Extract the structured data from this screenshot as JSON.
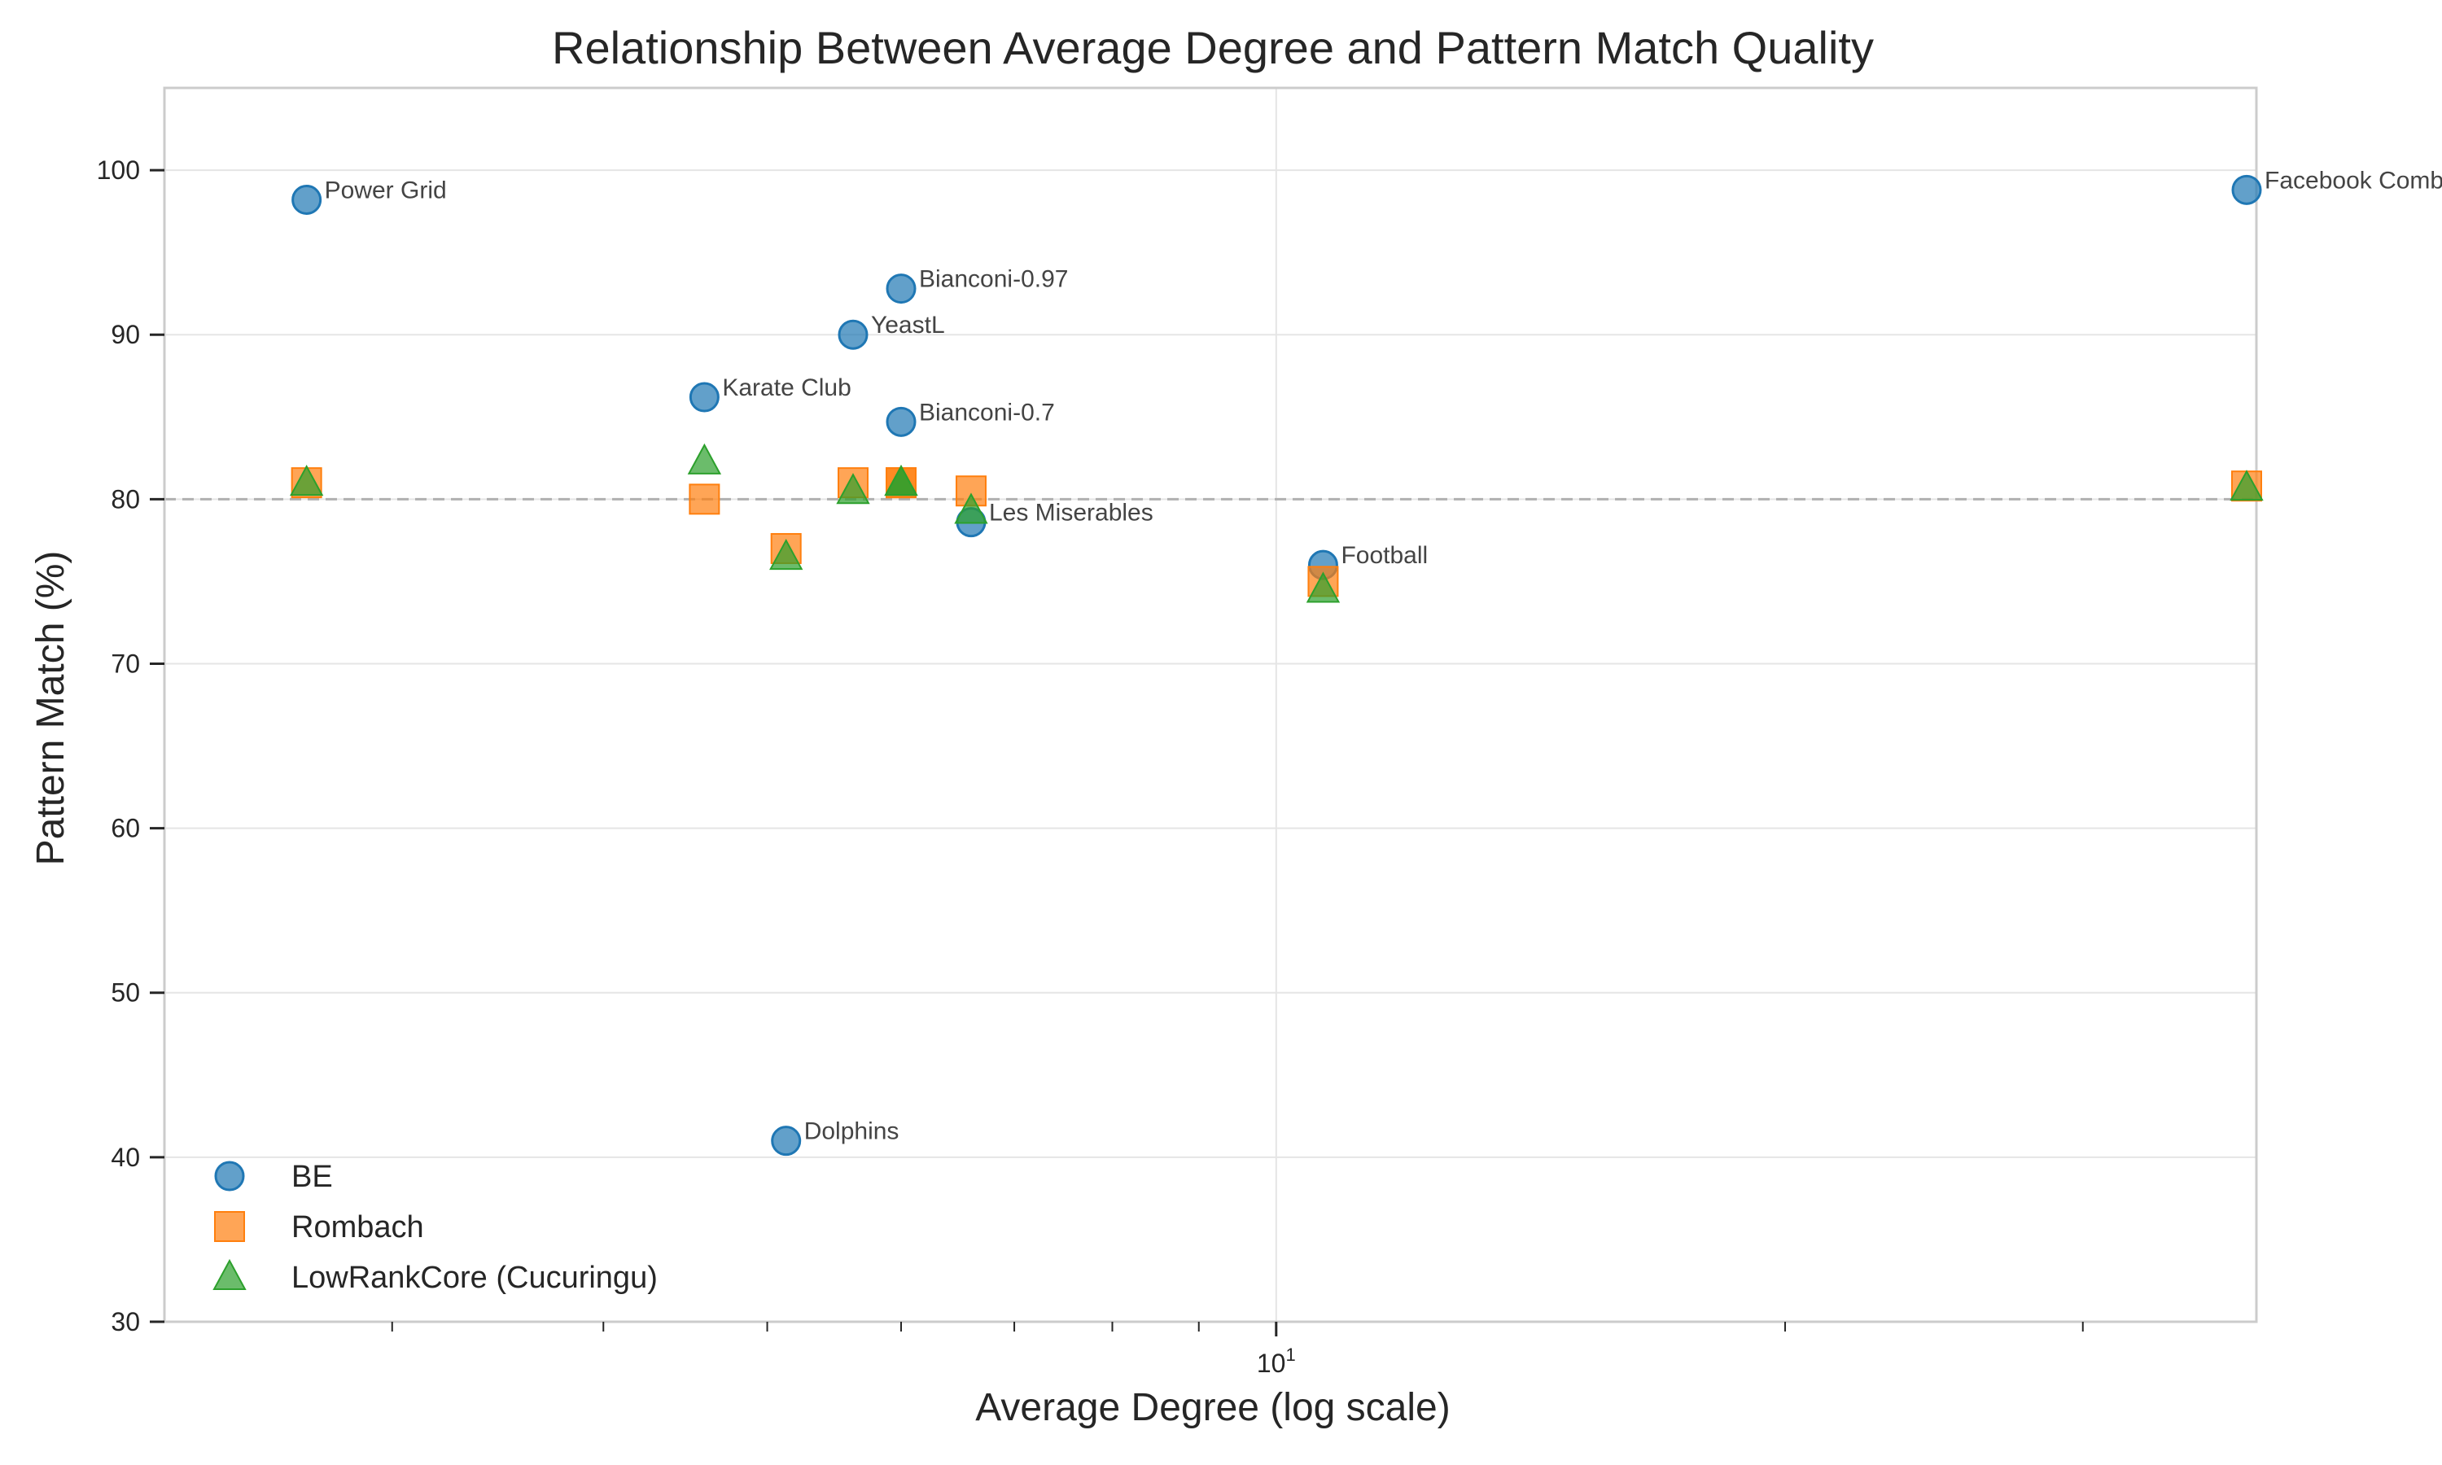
{
  "chart_data": {
    "type": "scatter",
    "title": "Relationship Between Average Degree and Pattern Match Quality",
    "xlabel": "Average Degree (log scale)",
    "ylabel": "Pattern Match (%)",
    "xscale": "log",
    "xlim": [
      2.2,
      38
    ],
    "ylim": [
      30,
      105
    ],
    "xticks_major": [
      {
        "value": 10,
        "label": "10^1"
      }
    ],
    "xticks_minor": [
      3,
      4,
      5,
      6,
      7,
      8,
      9,
      20,
      30
    ],
    "yticks": [
      30,
      40,
      50,
      60,
      70,
      80,
      90,
      100
    ],
    "grid": true,
    "reference_line": {
      "y": 80,
      "style": "dashed",
      "color": "#b0b0b0"
    },
    "legend_position": "lower-left",
    "colors": {
      "BE": "#1f77b4",
      "Rombach": "#ff7f0e",
      "LowRankCore (Cucuringu)": "#2ca02c"
    },
    "series": [
      {
        "name": "BE",
        "marker": "circle",
        "points": [
          {
            "label": "Power Grid",
            "x": 2.67,
            "y": 98.2
          },
          {
            "label": "Karate Club",
            "x": 4.59,
            "y": 86.2
          },
          {
            "label": "Dolphins",
            "x": 5.13,
            "y": 41.0
          },
          {
            "label": "YeastL",
            "x": 5.62,
            "y": 90.0
          },
          {
            "label": "Bianconi-0.97",
            "x": 6.0,
            "y": 92.8
          },
          {
            "label": "Bianconi-0.7",
            "x": 6.0,
            "y": 84.7
          },
          {
            "label": "Les Miserables",
            "x": 6.6,
            "y": 78.6
          },
          {
            "label": "Football",
            "x": 10.66,
            "y": 76.0
          },
          {
            "label": "Facebook Combined",
            "x": 43.69,
            "y": 98.8
          }
        ]
      },
      {
        "name": "Rombach",
        "marker": "square",
        "points": [
          {
            "x": 2.67,
            "y": 81.0
          },
          {
            "x": 4.59,
            "y": 80.0
          },
          {
            "x": 5.13,
            "y": 77.0
          },
          {
            "x": 5.62,
            "y": 81.0
          },
          {
            "x": 6.0,
            "y": 81.0
          },
          {
            "x": 6.0,
            "y": 81.0
          },
          {
            "x": 6.6,
            "y": 80.5
          },
          {
            "x": 10.66,
            "y": 75.0
          },
          {
            "x": 43.69,
            "y": 80.8
          }
        ]
      },
      {
        "name": "LowRankCore (Cucuringu)",
        "marker": "triangle",
        "points": [
          {
            "x": 2.67,
            "y": 81.0
          },
          {
            "x": 4.59,
            "y": 82.3
          },
          {
            "x": 5.13,
            "y": 76.5
          },
          {
            "x": 5.62,
            "y": 80.5
          },
          {
            "x": 6.0,
            "y": 81.0
          },
          {
            "x": 6.0,
            "y": 81.0
          },
          {
            "x": 6.6,
            "y": 79.3
          },
          {
            "x": 10.66,
            "y": 74.5
          },
          {
            "x": 43.69,
            "y": 80.7
          }
        ]
      }
    ]
  }
}
